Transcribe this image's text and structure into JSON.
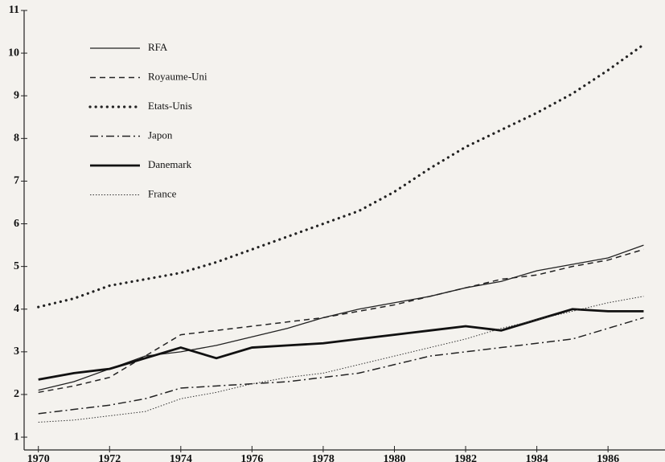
{
  "chart_data": {
    "type": "line",
    "x": [
      1970,
      1971,
      1972,
      1973,
      1974,
      1975,
      1976,
      1977,
      1978,
      1979,
      1980,
      1981,
      1982,
      1983,
      1984,
      1985,
      1986,
      1987
    ],
    "xlim": [
      1969.6,
      1987.6
    ],
    "xticks": [
      1970,
      1972,
      1974,
      1976,
      1978,
      1980,
      1982,
      1984,
      1986
    ],
    "ylim": [
      0.7,
      11
    ],
    "yticks": [
      1,
      2,
      3,
      4,
      5,
      6,
      7,
      8,
      9,
      10,
      11
    ],
    "legend": "upper left",
    "series": [
      {
        "name": "RFA",
        "color": "#222222",
        "style": "solid",
        "values": [
          2.1,
          2.3,
          2.6,
          2.9,
          3.0,
          3.15,
          3.35,
          3.55,
          3.8,
          4.0,
          4.15,
          4.3,
          4.5,
          4.65,
          4.9,
          5.05,
          5.2,
          5.5
        ]
      },
      {
        "name": "Royaume-Uni",
        "color": "#222222",
        "style": "dashed",
        "values": [
          2.05,
          2.2,
          2.4,
          2.9,
          3.4,
          3.5,
          3.6,
          3.7,
          3.8,
          3.95,
          4.1,
          4.3,
          4.5,
          4.7,
          4.8,
          5.0,
          5.15,
          5.4
        ]
      },
      {
        "name": "Etats-Unis",
        "color": "#222222",
        "style": "dotted",
        "values": [
          4.05,
          4.25,
          4.55,
          4.7,
          4.85,
          5.1,
          5.4,
          5.7,
          6.0,
          6.3,
          6.75,
          7.3,
          7.8,
          8.2,
          8.6,
          9.05,
          9.6,
          10.2
        ]
      },
      {
        "name": "Japon",
        "color": "#222222",
        "style": "dashdot",
        "values": [
          1.55,
          1.65,
          1.75,
          1.9,
          2.15,
          2.2,
          2.25,
          2.3,
          2.4,
          2.5,
          2.7,
          2.9,
          3.0,
          3.1,
          3.2,
          3.3,
          3.55,
          3.8
        ]
      },
      {
        "name": "Danemark",
        "color": "#111111",
        "style": "thick",
        "values": [
          2.35,
          2.5,
          2.6,
          2.85,
          3.1,
          2.85,
          3.1,
          3.15,
          3.2,
          3.3,
          3.4,
          3.5,
          3.6,
          3.5,
          3.75,
          4.0,
          3.95,
          3.95
        ]
      },
      {
        "name": "France",
        "color": "#333333",
        "style": "fine",
        "values": [
          1.35,
          1.4,
          1.5,
          1.6,
          1.9,
          2.05,
          2.25,
          2.4,
          2.5,
          2.7,
          2.9,
          3.1,
          3.3,
          3.55,
          3.75,
          3.95,
          4.15,
          4.3
        ]
      }
    ]
  }
}
